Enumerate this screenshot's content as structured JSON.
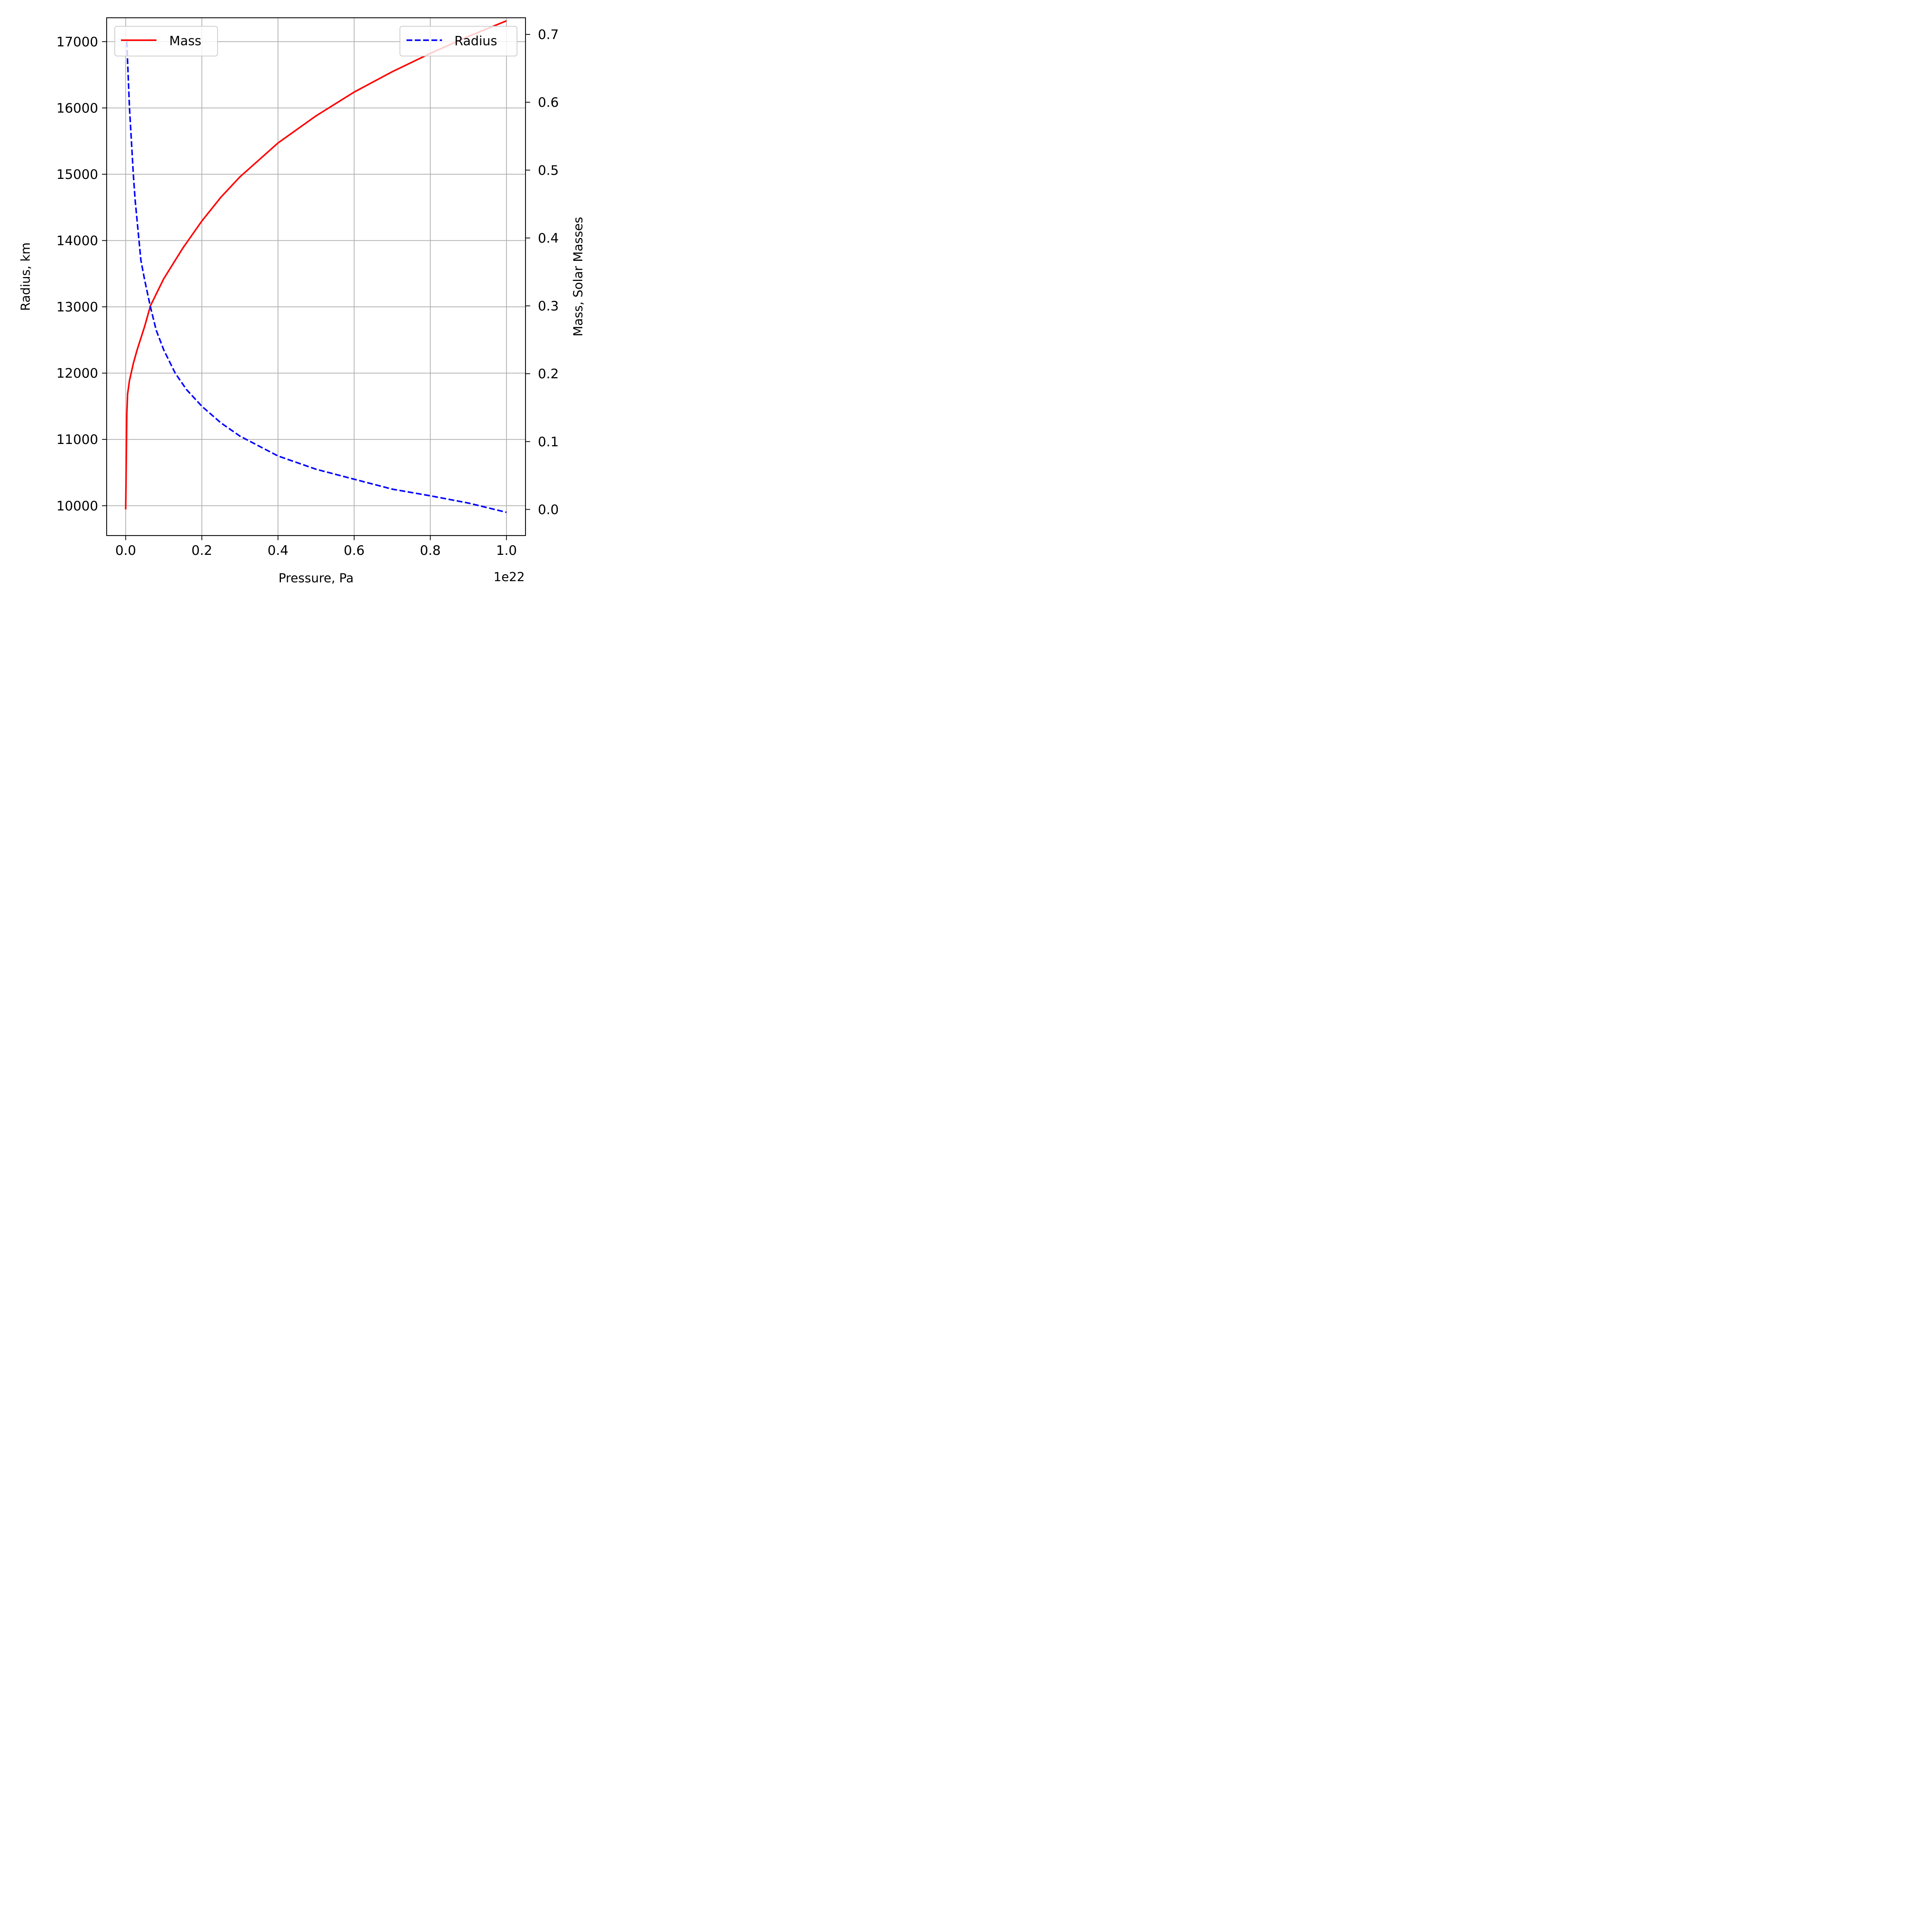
{
  "chart_data": {
    "type": "line",
    "xlabel": "Pressure, Pa",
    "x_offset_label": "1e22",
    "ylabel_left": "Radius, km",
    "ylabel_right": "Mass, Solar Masses",
    "x_ticks": [
      "0.0",
      "0.2",
      "0.4",
      "0.6",
      "0.8",
      "1.0"
    ],
    "y_left_ticks": [
      "10000",
      "11000",
      "12000",
      "13000",
      "14000",
      "15000",
      "16000",
      "17000"
    ],
    "y_right_ticks": [
      "0.0",
      "0.1",
      "0.2",
      "0.3",
      "0.4",
      "0.5",
      "0.6",
      "0.7"
    ],
    "xlim": [
      -0.05,
      1.05
    ],
    "ylim_left": [
      9550,
      17360
    ],
    "ylim_right": [
      -0.0385,
      0.7245
    ],
    "grid": true,
    "x_scale_note": "x values in units of 1e22 Pa",
    "series": [
      {
        "name": "Mass",
        "axis": "right",
        "color": "#ff0000",
        "linestyle": "solid",
        "legend_position": "upper-left",
        "x": [
          0.0,
          0.003,
          0.005,
          0.01,
          0.02,
          0.03,
          0.05,
          0.065,
          0.1,
          0.15,
          0.2,
          0.25,
          0.3,
          0.4,
          0.5,
          0.6,
          0.7,
          0.8,
          0.9,
          1.0
        ],
        "y": [
          0.0,
          0.14,
          0.17,
          0.19,
          0.215,
          0.235,
          0.27,
          0.3,
          0.34,
          0.385,
          0.425,
          0.46,
          0.49,
          0.54,
          0.58,
          0.615,
          0.645,
          0.672,
          0.697,
          0.72
        ]
      },
      {
        "name": "Radius",
        "axis": "left",
        "color": "#0000ff",
        "linestyle": "dashed",
        "legend_position": "upper-right",
        "x": [
          0.003,
          0.005,
          0.01,
          0.015,
          0.02,
          0.025,
          0.03,
          0.04,
          0.05,
          0.065,
          0.08,
          0.1,
          0.13,
          0.16,
          0.2,
          0.25,
          0.3,
          0.35,
          0.4,
          0.5,
          0.6,
          0.7,
          0.8,
          0.9,
          1.0
        ],
        "y": [
          17000,
          16700,
          16000,
          15500,
          15000,
          14600,
          14300,
          13700,
          13400,
          13000,
          12650,
          12350,
          12000,
          11750,
          11500,
          11250,
          11050,
          10900,
          10750,
          10550,
          10400,
          10250,
          10150,
          10040,
          9900
        ]
      }
    ]
  }
}
